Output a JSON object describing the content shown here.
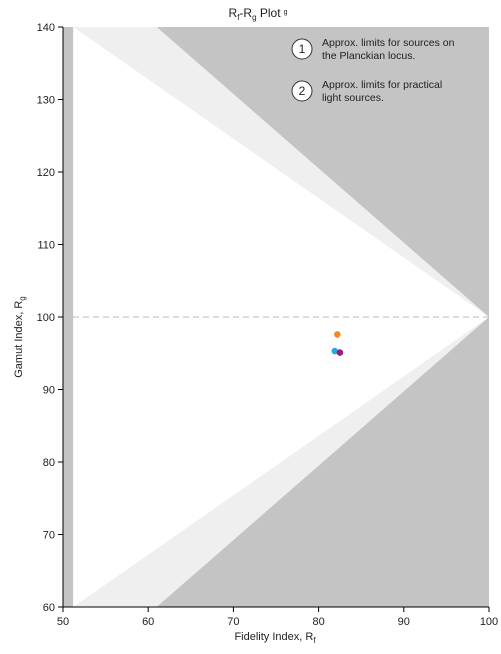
{
  "chart_data": {
    "type": "scatter",
    "title": {
      "main": "R",
      "sub1": "f",
      "mid": "-R",
      "sub2": "g",
      "tail": " Plot",
      "sup": "g"
    },
    "xlabel": {
      "main": "Fidelity Index, R",
      "sub": "f"
    },
    "ylabel": {
      "main": "Gamut Index, R",
      "sub": "g"
    },
    "xlim": [
      50,
      100
    ],
    "ylim": [
      60,
      140
    ],
    "xticks": [
      50,
      60,
      70,
      80,
      90,
      100
    ],
    "yticks": [
      60,
      70,
      80,
      90,
      100,
      110,
      120,
      130,
      140
    ],
    "reference_line": {
      "y": 100,
      "style": "dashed"
    },
    "regions": {
      "practical_limit": [
        [
          51.2,
          140
        ],
        [
          61,
          140
        ],
        [
          100,
          100
        ],
        [
          61,
          60
        ],
        [
          51.2,
          60
        ]
      ],
      "planckian_limit": [
        [
          51.2,
          140
        ],
        [
          100,
          100
        ],
        [
          51.2,
          60
        ]
      ]
    },
    "points": [
      {
        "x": 82.2,
        "y": 97.6,
        "color": "#f5891f"
      },
      {
        "x": 81.9,
        "y": 95.3,
        "color": "#2aa7e0"
      },
      {
        "x": 82.5,
        "y": 95.1,
        "color": "#9c1d7d"
      }
    ],
    "annotations": [
      {
        "number": "1",
        "lines": [
          "Approx. limits for sources on",
          "the Planckian locus."
        ]
      },
      {
        "number": "2",
        "lines": [
          "Approx. limits for practical",
          "light sources."
        ]
      }
    ],
    "colors": {
      "outside": "#c4c4c4",
      "practical_band": "#efefef",
      "planckian_region": "#ffffff",
      "reference_line": "#c8c8c8",
      "axis": "#000000"
    },
    "grid": false
  }
}
